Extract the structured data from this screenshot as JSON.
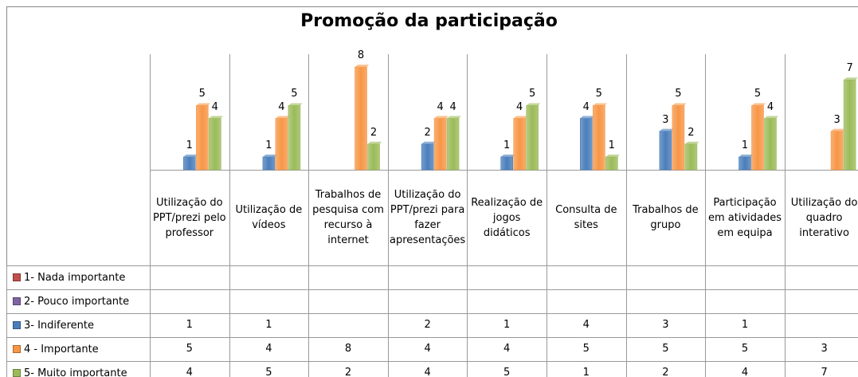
{
  "chart_data": {
    "type": "bar",
    "title": "Promoção da participação",
    "categories": [
      "Utilização do PPT/prezi pelo professor",
      "Utilização de vídeos",
      "Trabalhos de pesquisa com recurso à internet",
      "Utilização do PPT/prezi para fazer apresentações",
      "Realização de jogos didáticos",
      "Consulta de sites",
      "Trabalhos de grupo",
      "Participação em atividades em equipa",
      "Utilização do quadro interativo"
    ],
    "series": [
      {
        "name": "1- Nada importante",
        "color": "#c0504d",
        "values": [
          null,
          null,
          null,
          null,
          null,
          null,
          null,
          null,
          null
        ]
      },
      {
        "name": "2- Pouco importante",
        "color": "#8064a2",
        "values": [
          null,
          null,
          null,
          null,
          null,
          null,
          null,
          null,
          null
        ]
      },
      {
        "name": "3- Indiferente",
        "color": "#4a7ebb",
        "values": [
          1,
          1,
          null,
          2,
          1,
          4,
          3,
          1,
          null
        ]
      },
      {
        "name": "4 - Importante",
        "color": "#f79646",
        "values": [
          5,
          4,
          8,
          4,
          4,
          5,
          5,
          5,
          3
        ]
      },
      {
        "name": "5- Muito importante",
        "color": "#9bbb59",
        "values": [
          4,
          5,
          2,
          4,
          5,
          1,
          2,
          4,
          7
        ]
      }
    ],
    "ylim": [
      0,
      9
    ]
  }
}
